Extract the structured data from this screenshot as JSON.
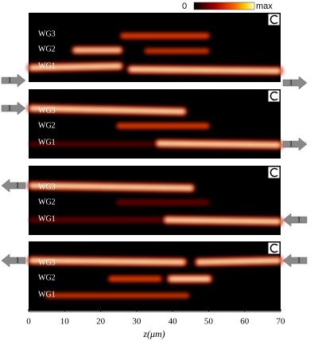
{
  "chart_data": {
    "type": "field-map",
    "colorbar": {
      "min_label": "0",
      "max_label": "max"
    },
    "xlabel": "z(μm)",
    "xlim": [
      0,
      70
    ],
    "xticks": [
      0,
      10,
      20,
      30,
      40,
      50,
      60,
      70
    ],
    "panels": [
      {
        "labels": [
          "WG3",
          "WG2",
          "WG1"
        ],
        "arrow_labels": [
          "1",
          "1"
        ]
      },
      {
        "labels": [
          "WG3",
          "WG2",
          "WG1"
        ],
        "arrow_labels": [
          "1",
          "1"
        ]
      },
      {
        "labels": [
          "WG3",
          "WG2",
          "WG1"
        ],
        "arrow_labels": [
          "1",
          "1"
        ]
      },
      {
        "labels": [
          "WG3",
          "WG2",
          "WG1"
        ],
        "arrow_labels": [
          "1",
          "1"
        ]
      }
    ]
  }
}
